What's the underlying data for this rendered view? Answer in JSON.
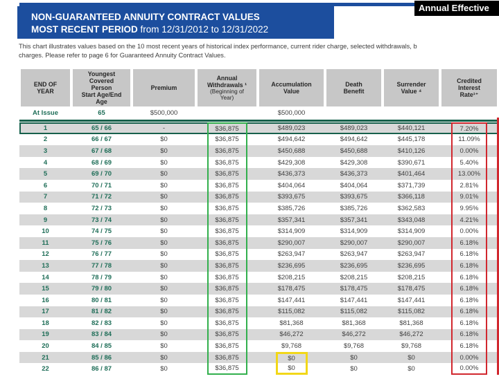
{
  "banner": {
    "top_right_tag": "Annual Effective"
  },
  "title": {
    "line1": "NON-GUARANTEED ANNUITY CONTRACT VALUES",
    "line2_bold": "MOST RECENT PERIOD",
    "line2_rest": " from 12/31/2012 to 12/31/2022"
  },
  "description": {
    "line1": "This chart illustrates values based on the 10 most recent years of historical index performance, current rider charge, selected withdrawals, b",
    "line2": "charges. Please refer to page 6 for Guaranteed Annuity Contract Values."
  },
  "table": {
    "columns": [
      {
        "label": "END OF\nYEAR"
      },
      {
        "label": "Youngest\nCovered\nPerson\nStart Age/End\nAge"
      },
      {
        "label": "Premium"
      },
      {
        "label": "Annual\nWithdrawals ¹",
        "sublabel": "(Beginning of\nYear)"
      },
      {
        "label": "Accumulation\nValue"
      },
      {
        "label": "Death\nBenefit"
      },
      {
        "label": "Surrender\nValue ⁴"
      },
      {
        "label": "Credited\nInterest\nRate¹⁺"
      }
    ],
    "at_issue": [
      "At Issue",
      "65",
      "$500,000",
      "",
      "$500,000",
      "",
      "",
      ""
    ],
    "rows": [
      [
        "1",
        "65 / 66",
        "-",
        "$36,875",
        "$489,023",
        "$489,023",
        "$440,121",
        "7.20%"
      ],
      [
        "2",
        "66 / 67",
        "$0",
        "$36,875",
        "$494,642",
        "$494,642",
        "$445,178",
        "11.09%"
      ],
      [
        "3",
        "67 / 68",
        "$0",
        "$36,875",
        "$450,688",
        "$450,688",
        "$410,126",
        "0.00%"
      ],
      [
        "4",
        "68 / 69",
        "$0",
        "$36,875",
        "$429,308",
        "$429,308",
        "$390,671",
        "5.40%"
      ],
      [
        "5",
        "69 / 70",
        "$0",
        "$36,875",
        "$436,373",
        "$436,373",
        "$401,464",
        "13.00%"
      ],
      [
        "6",
        "70 / 71",
        "$0",
        "$36,875",
        "$404,064",
        "$404,064",
        "$371,739",
        "2.81%"
      ],
      [
        "7",
        "71 / 72",
        "$0",
        "$36,875",
        "$393,675",
        "$393,675",
        "$366,118",
        "9.01%"
      ],
      [
        "8",
        "72 / 73",
        "$0",
        "$36,875",
        "$385,726",
        "$385,726",
        "$362,583",
        "9.95%"
      ],
      [
        "9",
        "73 / 74",
        "$0",
        "$36,875",
        "$357,341",
        "$357,341",
        "$343,048",
        "4.21%"
      ],
      [
        "10",
        "74 / 75",
        "$0",
        "$36,875",
        "$314,909",
        "$314,909",
        "$314,909",
        "0.00%"
      ],
      [
        "11",
        "75 / 76",
        "$0",
        "$36,875",
        "$290,007",
        "$290,007",
        "$290,007",
        "6.18%"
      ],
      [
        "12",
        "76 / 77",
        "$0",
        "$36,875",
        "$263,947",
        "$263,947",
        "$263,947",
        "6.18%"
      ],
      [
        "13",
        "77 / 78",
        "$0",
        "$36,875",
        "$236,695",
        "$236,695",
        "$236,695",
        "6.18%"
      ],
      [
        "14",
        "78 / 79",
        "$0",
        "$36,875",
        "$208,215",
        "$208,215",
        "$208,215",
        "6.18%"
      ],
      [
        "15",
        "79 / 80",
        "$0",
        "$36,875",
        "$178,475",
        "$178,475",
        "$178,475",
        "6.18%"
      ],
      [
        "16",
        "80 / 81",
        "$0",
        "$36,875",
        "$147,441",
        "$147,441",
        "$147,441",
        "6.18%"
      ],
      [
        "17",
        "81 / 82",
        "$0",
        "$36,875",
        "$115,082",
        "$115,082",
        "$115,082",
        "6.18%"
      ],
      [
        "18",
        "82 / 83",
        "$0",
        "$36,875",
        "$81,368",
        "$81,368",
        "$81,368",
        "6.18%"
      ],
      [
        "19",
        "83 / 84",
        "$0",
        "$36,875",
        "$46,272",
        "$46,272",
        "$46,272",
        "6.18%"
      ],
      [
        "20",
        "84 / 85",
        "$0",
        "$36,875",
        "$9,768",
        "$9,768",
        "$9,768",
        "6.18%"
      ],
      [
        "21",
        "85 / 86",
        "$0",
        "$36,875",
        "$0",
        "$0",
        "$0",
        "0.00%"
      ],
      [
        "22",
        "86 / 87",
        "$0",
        "$36,875",
        "$0",
        "$0",
        "$0",
        "0.00%"
      ]
    ]
  },
  "colors": {
    "navy": "#1c4e9e",
    "header_gray": "#c7c7c7",
    "stripe_gray": "#d8d8d8",
    "highlight_green": "#16604b",
    "box_green": "#31af4c",
    "box_red": "#d1272e",
    "box_yellow": "#f2d718",
    "green_text": "#1f6e58"
  }
}
